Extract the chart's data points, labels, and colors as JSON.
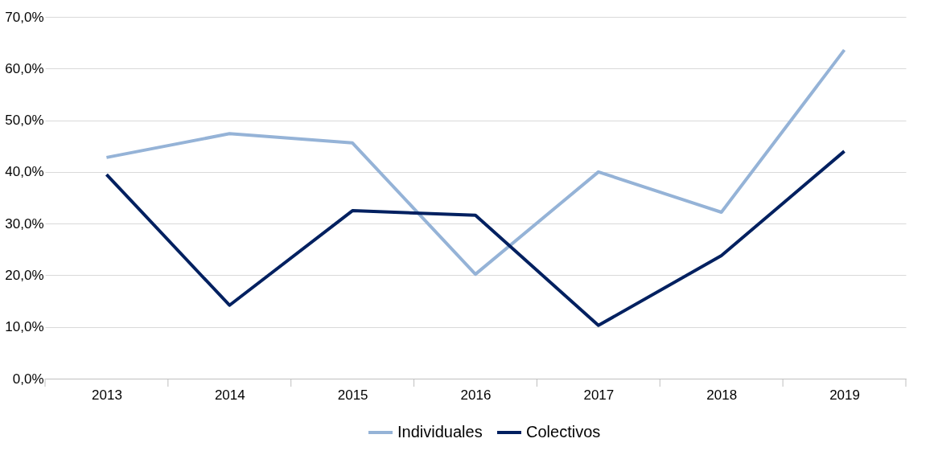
{
  "chart_data": {
    "type": "line",
    "categories": [
      "2013",
      "2014",
      "2015",
      "2016",
      "2017",
      "2018",
      "2019"
    ],
    "series": [
      {
        "name": "Individuales",
        "color": "#95b3d7",
        "values": [
          42.8,
          47.4,
          45.6,
          20.2,
          40.0,
          32.2,
          63.6
        ]
      },
      {
        "name": "Colectivos",
        "color": "#002060",
        "values": [
          39.5,
          14.2,
          32.5,
          31.6,
          10.3,
          23.8,
          44.0
        ]
      }
    ],
    "ylim": [
      0,
      70
    ],
    "yticks": [
      {
        "value": 0,
        "label": "0,0%"
      },
      {
        "value": 10,
        "label": "10,0%"
      },
      {
        "value": 20,
        "label": "20,0%"
      },
      {
        "value": 30,
        "label": "30,0%"
      },
      {
        "value": 40,
        "label": "40,0%"
      },
      {
        "value": 50,
        "label": "50,0%"
      },
      {
        "value": 60,
        "label": "60,0%"
      },
      {
        "value": 70,
        "label": "70,0%"
      }
    ],
    "grid": "y",
    "legend": "bottom",
    "marker": "none",
    "line_style": "solid"
  }
}
